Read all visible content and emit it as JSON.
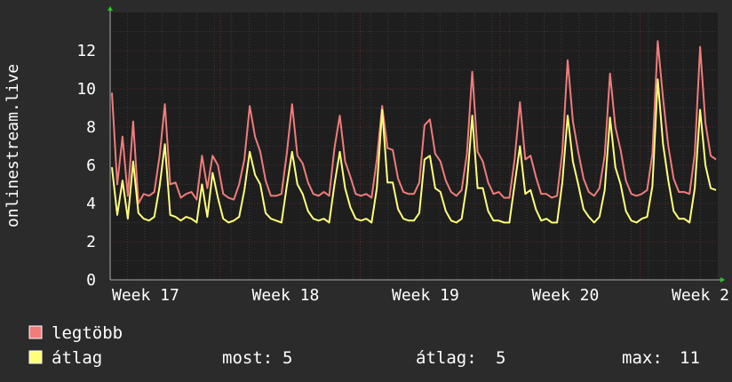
{
  "chart_data": {
    "type": "line",
    "ylabel": "onlinestream.live",
    "ylim": [
      0,
      14
    ],
    "y_ticks": [
      0,
      2,
      4,
      6,
      8,
      10,
      12
    ],
    "x_ticks": [
      "Week 17",
      "Week 18",
      "Week 19",
      "Week 20",
      "Week 2"
    ],
    "grid": true,
    "background_color": "#1e1e1e",
    "grid_color": "#3a3a3a",
    "series": [
      {
        "name": "legtöbb",
        "color": "#f07c7c",
        "values": [
          9.8,
          5,
          7.5,
          4.4,
          8.3,
          4,
          4.5,
          4.4,
          4.6,
          6.5,
          9.2,
          5,
          5.1,
          4.3,
          4.5,
          4.6,
          4.2,
          6.5,
          4.8,
          6.5,
          6,
          4.5,
          4.3,
          4.2,
          5,
          6.3,
          9.1,
          7.5,
          6.7,
          5.2,
          4.4,
          4.4,
          4.5,
          6.6,
          9.2,
          6.5,
          6.1,
          5.1,
          4.5,
          4.4,
          4.6,
          4.4,
          6.9,
          8.6,
          6.2,
          5.4,
          4.5,
          4.4,
          4.5,
          4.3,
          6.3,
          9.1,
          6.9,
          6.8,
          5.3,
          4.6,
          4.5,
          4.5,
          5.1,
          8.1,
          8.4,
          6.6,
          6.2,
          5.2,
          4.6,
          4.4,
          4.7,
          6.6,
          10.9,
          6.7,
          6.2,
          5.1,
          4.5,
          4.6,
          4.3,
          4.3,
          6.3,
          9.3,
          6.3,
          6.5,
          5.4,
          4.5,
          4.5,
          4.3,
          4.4,
          6.7,
          11.5,
          8.3,
          6.7,
          5.3,
          4.6,
          4.4,
          4.8,
          6.5,
          10.8,
          8,
          6.8,
          5.2,
          4.5,
          4.4,
          4.5,
          4.7,
          6.6,
          12.5,
          9.5,
          7,
          5.3,
          4.6,
          4.6,
          4.5,
          6.6,
          12.2,
          8.2,
          6.5,
          6.3
        ]
      },
      {
        "name": "átlag",
        "color": "#ffff7a",
        "values": [
          5.9,
          3.4,
          5.2,
          3.2,
          6.2,
          3.5,
          3.2,
          3.1,
          3.3,
          4.9,
          7.1,
          3.4,
          3.3,
          3.1,
          3.3,
          3.2,
          3,
          5,
          3.3,
          5.6,
          4.3,
          3.2,
          3,
          3.1,
          3.3,
          4.7,
          6.7,
          5.5,
          5,
          3.5,
          3.2,
          3.1,
          3,
          4.9,
          6.7,
          5,
          4.5,
          3.6,
          3.2,
          3.1,
          3.2,
          3,
          5,
          6.7,
          4.8,
          3.8,
          3.2,
          3.1,
          3.2,
          3,
          4.8,
          8.9,
          5.1,
          5.1,
          3.7,
          3.2,
          3.1,
          3.1,
          3.5,
          6.3,
          6.5,
          4.8,
          4.6,
          3.6,
          3.1,
          3,
          3.2,
          5,
          8.6,
          4.8,
          4.8,
          3.6,
          3.1,
          3.1,
          3,
          3,
          5,
          7,
          4.5,
          4.7,
          3.7,
          3.1,
          3.2,
          3,
          3,
          5.1,
          8.6,
          6.2,
          5,
          3.7,
          3.3,
          3,
          3.3,
          4.7,
          8.5,
          5.9,
          5,
          3.6,
          3.1,
          3,
          3.2,
          3.3,
          4.9,
          10.5,
          7.1,
          5.2,
          3.6,
          3.2,
          3.2,
          3,
          4.8,
          8.9,
          6,
          4.8,
          4.7
        ]
      }
    ]
  },
  "stats": {
    "most_label": "most:",
    "most_value": "5",
    "avg_label": "átlag:",
    "avg_value": "5",
    "max_label": "max:",
    "max_value": "11"
  }
}
